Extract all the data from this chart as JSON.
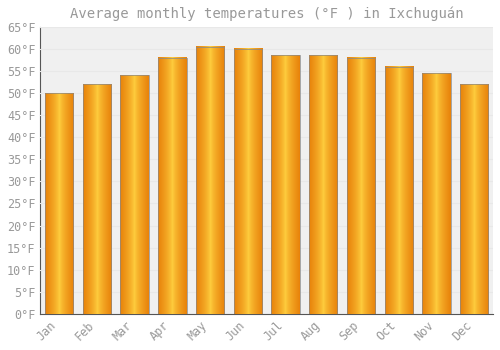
{
  "title": "Average monthly temperatures (°F ) in Ixchuguán",
  "months": [
    "Jan",
    "Feb",
    "Mar",
    "Apr",
    "May",
    "Jun",
    "Jul",
    "Aug",
    "Sep",
    "Oct",
    "Nov",
    "Dec"
  ],
  "values": [
    50,
    52,
    54,
    58,
    60.5,
    60,
    58.5,
    58.5,
    58,
    56,
    54.5,
    52
  ],
  "bar_color_left": "#E8820A",
  "bar_color_center": "#FFD040",
  "bar_color_right": "#E8820A",
  "ylim": [
    0,
    65
  ],
  "yticks": [
    0,
    5,
    10,
    15,
    20,
    25,
    30,
    35,
    40,
    45,
    50,
    55,
    60,
    65
  ],
  "ytick_labels": [
    "0°F",
    "5°F",
    "10°F",
    "15°F",
    "20°F",
    "25°F",
    "30°F",
    "35°F",
    "40°F",
    "45°F",
    "50°F",
    "55°F",
    "60°F",
    "65°F"
  ],
  "bg_color": "#ffffff",
  "plot_bg_color": "#f0f0f0",
  "grid_color": "#e8e8e8",
  "font_color": "#999999",
  "title_fontsize": 10,
  "tick_fontsize": 8.5,
  "bar_width": 0.75
}
